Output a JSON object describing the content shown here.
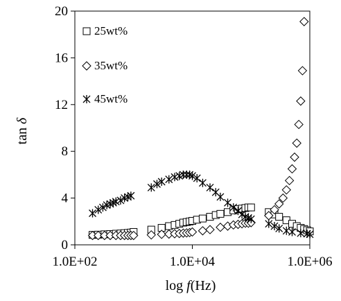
{
  "chart_data": {
    "type": "scatter",
    "xlabel": "log",
    "xlabel_var": "f",
    "xlabel_unit": "(Hz)",
    "ylabel": "tan",
    "ylabel_symbol": "δ",
    "x_scale": "log",
    "xlim": [
      100,
      1000000
    ],
    "ylim": [
      0,
      20
    ],
    "x_ticks": [
      100,
      10000,
      1000000
    ],
    "x_tick_labels": [
      "1.0E+02",
      "1.0E+04",
      "1.0E+06"
    ],
    "y_ticks": [
      0,
      4,
      8,
      12,
      16,
      20
    ],
    "y_tick_labels": [
      "0",
      "4",
      "8",
      "12",
      "16",
      "20"
    ],
    "grid": false,
    "legend_position": "top-left",
    "series": [
      {
        "name": "25wt%",
        "marker": "square",
        "points": [
          [
            200,
            0.85
          ],
          [
            250,
            0.87
          ],
          [
            320,
            0.9
          ],
          [
            400,
            0.92
          ],
          [
            500,
            0.95
          ],
          [
            600,
            0.97
          ],
          [
            700,
            1.0
          ],
          [
            800,
            1.02
          ],
          [
            900,
            1.05
          ],
          [
            1000,
            1.1
          ],
          [
            2000,
            1.3
          ],
          [
            3000,
            1.45
          ],
          [
            4000,
            1.6
          ],
          [
            5000,
            1.7
          ],
          [
            6000,
            1.8
          ],
          [
            7000,
            1.9
          ],
          [
            8000,
            1.95
          ],
          [
            9000,
            2.0
          ],
          [
            10000,
            2.05
          ],
          [
            12000,
            2.15
          ],
          [
            15000,
            2.25
          ],
          [
            20000,
            2.4
          ],
          [
            25000,
            2.55
          ],
          [
            30000,
            2.65
          ],
          [
            40000,
            2.8
          ],
          [
            50000,
            2.95
          ],
          [
            60000,
            3.05
          ],
          [
            70000,
            3.1
          ],
          [
            80000,
            3.15
          ],
          [
            90000,
            3.2
          ],
          [
            100000,
            3.2
          ],
          [
            200000,
            2.8
          ],
          [
            250000,
            2.6
          ],
          [
            300000,
            2.4
          ],
          [
            400000,
            2.1
          ],
          [
            500000,
            1.8
          ],
          [
            600000,
            1.6
          ],
          [
            700000,
            1.45
          ],
          [
            800000,
            1.35
          ],
          [
            900000,
            1.25
          ],
          [
            1000000,
            1.15
          ]
        ]
      },
      {
        "name": "35wt%",
        "marker": "diamond",
        "points": [
          [
            200,
            0.8
          ],
          [
            250,
            0.8
          ],
          [
            320,
            0.8
          ],
          [
            400,
            0.8
          ],
          [
            500,
            0.8
          ],
          [
            600,
            0.8
          ],
          [
            700,
            0.8
          ],
          [
            800,
            0.8
          ],
          [
            900,
            0.8
          ],
          [
            1000,
            0.8
          ],
          [
            2000,
            0.85
          ],
          [
            3000,
            0.9
          ],
          [
            4000,
            0.92
          ],
          [
            5000,
            0.95
          ],
          [
            6000,
            0.97
          ],
          [
            7000,
            1.0
          ],
          [
            8000,
            1.02
          ],
          [
            9000,
            1.05
          ],
          [
            10000,
            1.1
          ],
          [
            15000,
            1.2
          ],
          [
            20000,
            1.3
          ],
          [
            30000,
            1.5
          ],
          [
            40000,
            1.6
          ],
          [
            50000,
            1.7
          ],
          [
            60000,
            1.75
          ],
          [
            70000,
            1.8
          ],
          [
            80000,
            1.85
          ],
          [
            90000,
            1.85
          ],
          [
            100000,
            1.9
          ],
          [
            200000,
            2.5
          ],
          [
            250000,
            3.0
          ],
          [
            300000,
            3.5
          ],
          [
            350000,
            4.0
          ],
          [
            400000,
            4.7
          ],
          [
            450000,
            5.5
          ],
          [
            500000,
            6.5
          ],
          [
            550000,
            7.5
          ],
          [
            600000,
            8.7
          ],
          [
            650000,
            10.3
          ],
          [
            700000,
            12.3
          ],
          [
            750000,
            14.9
          ],
          [
            800000,
            19.1
          ]
        ]
      },
      {
        "name": "45wt%",
        "marker": "asterisk",
        "points": [
          [
            200,
            2.7
          ],
          [
            250,
            3.0
          ],
          [
            300,
            3.2
          ],
          [
            350,
            3.4
          ],
          [
            400,
            3.5
          ],
          [
            450,
            3.6
          ],
          [
            500,
            3.7
          ],
          [
            600,
            3.8
          ],
          [
            700,
            4.0
          ],
          [
            800,
            4.1
          ],
          [
            900,
            4.2
          ],
          [
            2000,
            4.9
          ],
          [
            2500,
            5.2
          ],
          [
            3000,
            5.4
          ],
          [
            4000,
            5.6
          ],
          [
            5000,
            5.8
          ],
          [
            6000,
            5.9
          ],
          [
            7000,
            6.0
          ],
          [
            8000,
            6.0
          ],
          [
            9000,
            6.0
          ],
          [
            10000,
            5.9
          ],
          [
            12000,
            5.7
          ],
          [
            15000,
            5.3
          ],
          [
            20000,
            4.9
          ],
          [
            25000,
            4.5
          ],
          [
            30000,
            4.1
          ],
          [
            40000,
            3.6
          ],
          [
            50000,
            3.2
          ],
          [
            60000,
            2.9
          ],
          [
            70000,
            2.6
          ],
          [
            80000,
            2.4
          ],
          [
            90000,
            2.3
          ],
          [
            100000,
            2.2
          ],
          [
            200000,
            1.8
          ],
          [
            250000,
            1.6
          ],
          [
            300000,
            1.4
          ],
          [
            400000,
            1.2
          ],
          [
            500000,
            1.1
          ],
          [
            700000,
            1.0
          ],
          [
            900000,
            0.95
          ],
          [
            1000000,
            0.9
          ]
        ]
      }
    ]
  }
}
